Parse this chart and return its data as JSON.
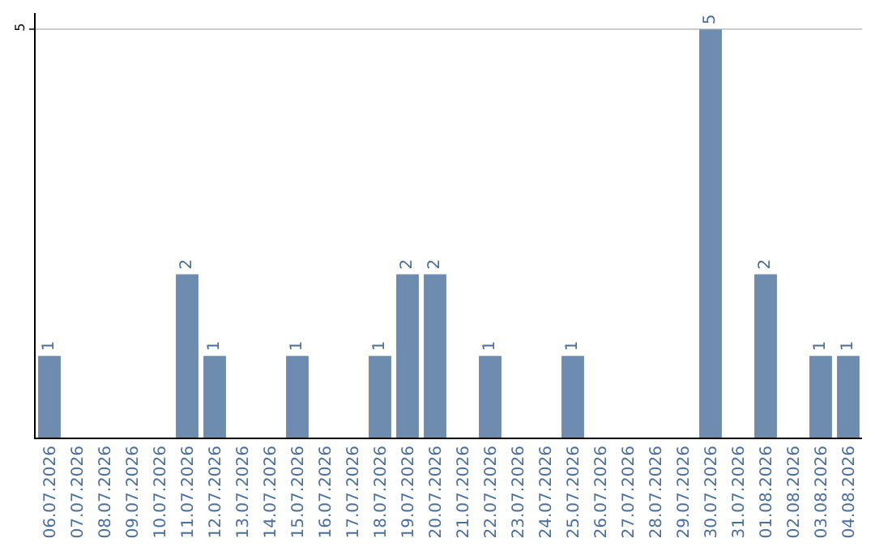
{
  "chart_data": {
    "type": "bar",
    "categories": [
      "06.07.2026",
      "07.07.2026",
      "08.07.2026",
      "09.07.2026",
      "10.07.2026",
      "11.07.2026",
      "12.07.2026",
      "13.07.2026",
      "14.07.2026",
      "15.07.2026",
      "16.07.2026",
      "17.07.2026",
      "18.07.2026",
      "19.07.2026",
      "20.07.2026",
      "21.07.2026",
      "22.07.2026",
      "23.07.2026",
      "24.07.2026",
      "25.07.2026",
      "26.07.2026",
      "27.07.2026",
      "28.07.2026",
      "29.07.2026",
      "30.07.2026",
      "31.07.2026",
      "01.08.2026",
      "02.08.2026",
      "03.08.2026",
      "04.08.2026"
    ],
    "values": [
      1,
      0,
      0,
      0,
      0,
      2,
      1,
      0,
      0,
      1,
      0,
      0,
      1,
      2,
      2,
      0,
      1,
      0,
      0,
      1,
      0,
      0,
      0,
      0,
      5,
      0,
      2,
      0,
      1,
      1
    ],
    "value_labels": [
      "1",
      null,
      null,
      null,
      null,
      "2",
      "1",
      null,
      null,
      "1",
      null,
      null,
      "1",
      "2",
      "2",
      null,
      "1",
      null,
      null,
      "1",
      null,
      null,
      null,
      null,
      "5",
      null,
      "2",
      null,
      "1",
      "1"
    ],
    "color": "#6d8caf",
    "ylim": [
      0,
      5.2
    ],
    "yticks": [
      5
    ],
    "grid": "y"
  }
}
